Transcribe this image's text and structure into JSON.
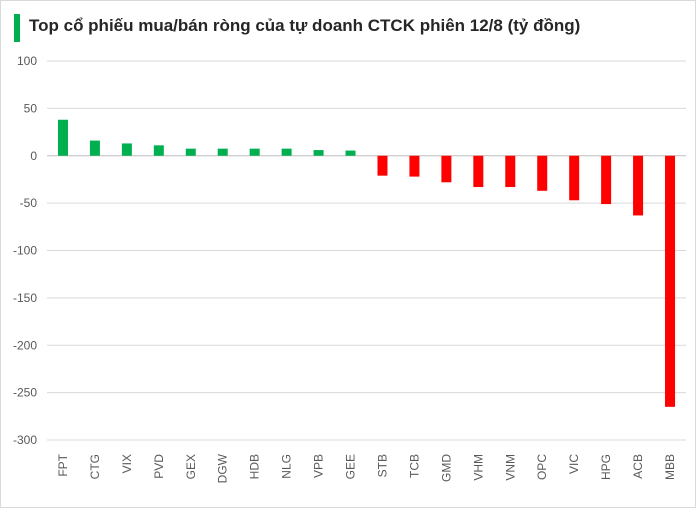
{
  "chart_data": {
    "type": "bar",
    "title": "Top cổ phiếu mua/bán ròng của tự doanh CTCK phiên 12/8 (tỷ đồng)",
    "categories": [
      "FPT",
      "CTG",
      "VIX",
      "PVD",
      "GEX",
      "DGW",
      "HDB",
      "NLG",
      "VPB",
      "GEE",
      "STB",
      "TCB",
      "GMD",
      "VHM",
      "VNM",
      "OPC",
      "VIC",
      "HPG",
      "ACB",
      "MBB"
    ],
    "values": [
      38,
      16,
      13,
      11,
      7.5,
      7.5,
      7.5,
      7.5,
      6,
      5.5,
      -21,
      -22,
      -28,
      -33,
      -33,
      -37,
      -47,
      -51,
      -63,
      -265
    ],
    "ylim": [
      -300,
      100
    ],
    "yticks": [
      100,
      50,
      0,
      -50,
      -100,
      -150,
      -200,
      -250,
      -300
    ],
    "ytick_labels": [
      "100",
      "50",
      "0",
      "-50",
      "-100",
      "-150",
      "-200",
      "-250",
      "-300"
    ],
    "grid": true,
    "colors": {
      "positive": "#00b050",
      "negative": "#ff0000",
      "accent": "#00b050",
      "grid": "#d9d9d9"
    }
  }
}
